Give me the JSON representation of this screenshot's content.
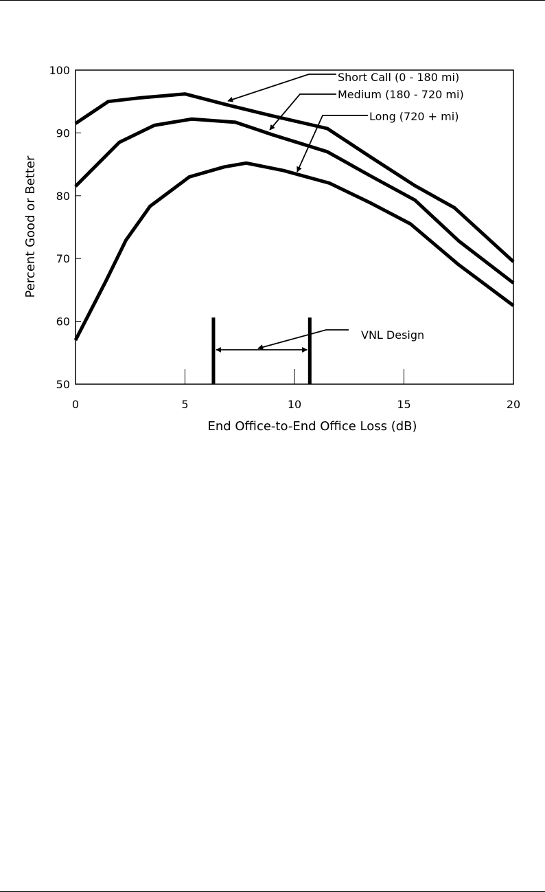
{
  "chart_data": {
    "type": "line",
    "title": "",
    "xlabel": "End Office-to-End Office Loss (dB)",
    "ylabel": "Percent Good or Better",
    "xlim": [
      0,
      20
    ],
    "ylim": [
      50,
      100
    ],
    "x_ticks": [
      "0",
      "5",
      "10",
      "15",
      "20"
    ],
    "y_ticks": [
      "100",
      "90",
      "80",
      "70",
      "60",
      "50"
    ],
    "series": [
      {
        "name": "Short Call (0 - 180 mi)",
        "x": [
          0,
          1.5,
          3.0,
          5.0,
          7.0,
          9.0,
          11.5,
          13.5,
          15.5,
          17.3,
          20.0
        ],
        "y": [
          91.5,
          95.0,
          95.6,
          96.2,
          94.4,
          92.7,
          90.7,
          86.1,
          81.6,
          78.1,
          69.5
        ]
      },
      {
        "name": "Medium (180 - 720 mi)",
        "x": [
          0,
          2.0,
          3.6,
          5.3,
          7.3,
          9.0,
          11.5,
          13.5,
          15.5,
          17.5,
          20.0
        ],
        "y": [
          81.5,
          88.5,
          91.2,
          92.2,
          91.7,
          89.7,
          87.0,
          83.1,
          79.3,
          72.8,
          66.1
        ]
      },
      {
        "name": "Long (720 +  mi)",
        "x": [
          0,
          1.4,
          2.3,
          3.4,
          5.2,
          6.8,
          7.8,
          9.5,
          11.6,
          13.5,
          15.3,
          17.5,
          20.0
        ],
        "y": [
          57.0,
          66.5,
          72.9,
          78.3,
          83.0,
          84.6,
          85.2,
          84.0,
          82.0,
          78.8,
          75.5,
          69.0,
          62.5
        ]
      }
    ],
    "annotations": {
      "vnl_label": "VNL Design",
      "vnl_range": [
        6.3,
        10.7
      ]
    },
    "grid": false,
    "legend": "callout labels with arrows"
  }
}
